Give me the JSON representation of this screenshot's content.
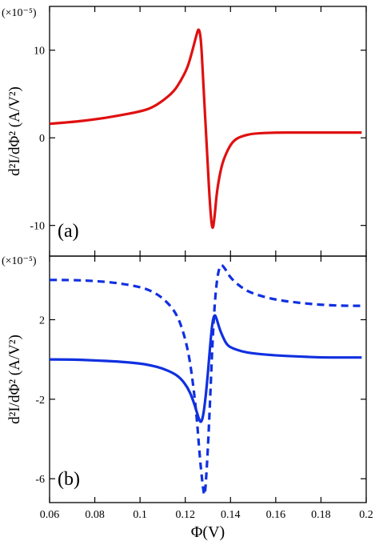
{
  "chart_data": [
    {
      "panel_label": "(a)",
      "type": "line",
      "ylabel": "d²I/dΦ² (A/V²)",
      "yscale_note": "(×10⁻⁵)",
      "xlim": [
        0.06,
        0.2
      ],
      "ylim": [
        -13.5,
        15
      ],
      "yticks": [
        10,
        0,
        -10
      ],
      "yticklabels": [
        "10",
        "0",
        "-10"
      ],
      "series": [
        {
          "color": "#e01010",
          "style": "solid",
          "x": [
            0.06,
            0.07,
            0.08,
            0.09,
            0.1,
            0.105,
            0.11,
            0.115,
            0.118,
            0.121,
            0.123,
            0.125,
            0.126,
            0.127,
            0.128,
            0.129,
            0.13,
            0.131,
            0.132,
            0.133,
            0.134,
            0.136,
            0.138,
            0.14,
            0.142,
            0.145,
            0.15,
            0.16,
            0.17,
            0.18,
            0.19,
            0.198
          ],
          "y": [
            1.6,
            1.8,
            2.1,
            2.5,
            3.0,
            3.4,
            4.2,
            5.3,
            6.5,
            8.0,
            9.8,
            11.8,
            12.6,
            11.2,
            6.0,
            1.5,
            -3.5,
            -8.0,
            -10.8,
            -9.0,
            -6.0,
            -3.2,
            -1.8,
            -0.8,
            -0.2,
            0.2,
            0.5,
            0.6,
            0.6,
            0.6,
            0.6,
            0.6
          ]
        }
      ]
    },
    {
      "panel_label": "(b)",
      "type": "line",
      "xlabel": "Φ(V)",
      "ylabel": "d²I/dΦ² (A/V²)",
      "yscale_note": "(×10⁻⁵)",
      "xlim": [
        0.06,
        0.2
      ],
      "xticks": [
        0.06,
        0.08,
        0.1,
        0.12,
        0.14,
        0.16,
        0.18,
        0.2
      ],
      "xticklabels": [
        "0.06",
        "0.08",
        "0.1",
        "0.12",
        "0.14",
        "0.16",
        "0.18",
        "0.2"
      ],
      "ylim": [
        -7.2,
        5.2
      ],
      "yticks": [
        2,
        -2,
        -6
      ],
      "yticklabels": [
        "2",
        "-2",
        "-6"
      ],
      "series": [
        {
          "color": "#1030e0",
          "style": "dashed",
          "x": [
            0.06,
            0.07,
            0.08,
            0.09,
            0.1,
            0.105,
            0.11,
            0.115,
            0.118,
            0.121,
            0.123,
            0.125,
            0.126,
            0.127,
            0.128,
            0.1285,
            0.129,
            0.13,
            0.131,
            0.132,
            0.133,
            0.134,
            0.135,
            0.136,
            0.138,
            0.14,
            0.145,
            0.15,
            0.16,
            0.17,
            0.18,
            0.19,
            0.198
          ],
          "y": [
            4.0,
            4.0,
            3.95,
            3.85,
            3.65,
            3.45,
            3.1,
            2.5,
            1.8,
            0.6,
            -0.8,
            -2.8,
            -4.3,
            -5.6,
            -6.6,
            -6.9,
            -6.4,
            -4.5,
            -2.0,
            0.8,
            2.8,
            4.0,
            4.6,
            4.8,
            4.5,
            4.1,
            3.6,
            3.3,
            3.0,
            2.85,
            2.75,
            2.7,
            2.7
          ]
        },
        {
          "color": "#1030e0",
          "style": "solid",
          "x": [
            0.06,
            0.07,
            0.08,
            0.09,
            0.1,
            0.105,
            0.11,
            0.115,
            0.118,
            0.121,
            0.123,
            0.125,
            0.126,
            0.127,
            0.128,
            0.129,
            0.13,
            0.131,
            0.132,
            0.133,
            0.134,
            0.135,
            0.136,
            0.138,
            0.14,
            0.145,
            0.15,
            0.16,
            0.17,
            0.18,
            0.19,
            0.198
          ],
          "y": [
            0.0,
            0.0,
            -0.05,
            -0.1,
            -0.2,
            -0.3,
            -0.45,
            -0.7,
            -0.95,
            -1.4,
            -1.9,
            -2.6,
            -3.0,
            -3.2,
            -2.8,
            -1.9,
            -0.7,
            0.7,
            1.9,
            2.3,
            2.0,
            1.6,
            1.3,
            0.8,
            0.6,
            0.4,
            0.3,
            0.2,
            0.15,
            0.1,
            0.1,
            0.1
          ]
        }
      ]
    }
  ]
}
